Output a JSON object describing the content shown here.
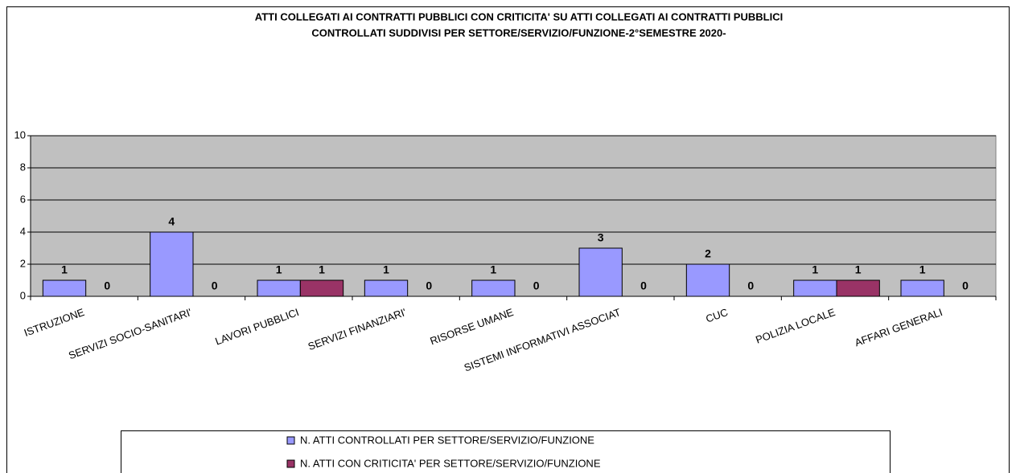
{
  "chart_data": {
    "type": "bar",
    "title": [
      "ATTI COLLEGATI AI CONTRATTI PUBBLICI CON CRITICITA' SU  ATTI COLLEGATI AI CONTRATTI PUBBLICI",
      "CONTROLLATI SUDDIVISI PER SETTORE/SERVIZIO/FUNZIONE-2°SEMESTRE 2020-"
    ],
    "categories": [
      "ISTRUZIONE",
      "SERVIZI SOCIO-SANITARI'",
      "LAVORI PUBBLICI",
      "SERVIZI FINANZIARI'",
      "RISORSE UMANE",
      "SISTEMI INFORMATIVI ASSOCIAT",
      "CUC",
      "POLIZIA LOCALE",
      "AFFARI GENERALI"
    ],
    "series": [
      {
        "name": "N. ATTI CONTROLLATI  PER SETTORE/SERVIZIO/FUNZIONE",
        "color": "#9999ff",
        "values": [
          1,
          4,
          1,
          1,
          1,
          3,
          2,
          1,
          1
        ]
      },
      {
        "name": "N. ATTI CON CRITICITA' PER SETTORE/SERVIZIO/FUNZIONE",
        "color": "#993366",
        "values": [
          0,
          0,
          1,
          0,
          0,
          0,
          0,
          1,
          0
        ]
      }
    ],
    "ylim": [
      0,
      10
    ],
    "yticks": [
      0,
      2,
      4,
      6,
      8,
      10
    ],
    "grid": true,
    "legend": "bottom"
  }
}
